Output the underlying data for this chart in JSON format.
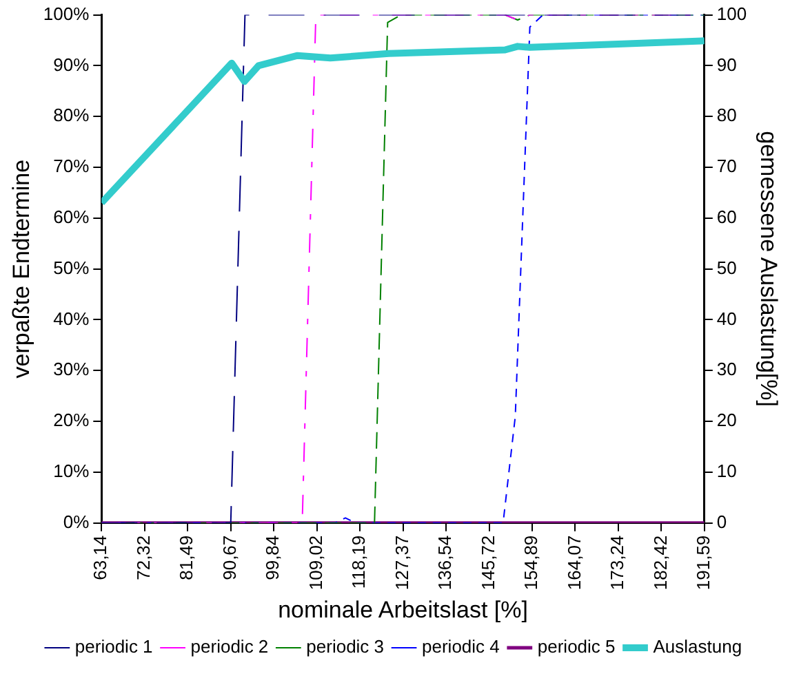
{
  "chart_data": {
    "type": "line",
    "xlabel": "nominale Arbeitslast [%]",
    "ylabel": "verpaßte Endtermine",
    "y2label": "gemessene Auslastung[%]",
    "xlim": [
      63.14,
      191.59
    ],
    "xticks": [
      {
        "value": 63.14,
        "label": "63,14"
      },
      {
        "value": 72.32,
        "label": "72,32"
      },
      {
        "value": 81.49,
        "label": "81,49"
      },
      {
        "value": 90.67,
        "label": "90,67"
      },
      {
        "value": 99.84,
        "label": "99,84"
      },
      {
        "value": 109.02,
        "label": "109,02"
      },
      {
        "value": 118.19,
        "label": "118,19"
      },
      {
        "value": 127.37,
        "label": "127,37"
      },
      {
        "value": 136.54,
        "label": "136,54"
      },
      {
        "value": 145.72,
        "label": "145,72"
      },
      {
        "value": 154.89,
        "label": "154,89"
      },
      {
        "value": 164.07,
        "label": "164,07"
      },
      {
        "value": 173.24,
        "label": "173,24"
      },
      {
        "value": 182.42,
        "label": "182,42"
      },
      {
        "value": 191.59,
        "label": "191,59"
      }
    ],
    "ylim": [
      0,
      100
    ],
    "yticks": [
      {
        "value": 0,
        "label": "0%"
      },
      {
        "value": 10,
        "label": "10%"
      },
      {
        "value": 20,
        "label": "20%"
      },
      {
        "value": 30,
        "label": "30%"
      },
      {
        "value": 40,
        "label": "40%"
      },
      {
        "value": 50,
        "label": "50%"
      },
      {
        "value": 60,
        "label": "60%"
      },
      {
        "value": 70,
        "label": "70%"
      },
      {
        "value": 80,
        "label": "80%"
      },
      {
        "value": 90,
        "label": "90%"
      },
      {
        "value": 100,
        "label": "100%"
      }
    ],
    "y2lim": [
      0,
      100
    ],
    "y2ticks": [
      0,
      10,
      20,
      30,
      40,
      50,
      60,
      70,
      80,
      90,
      100
    ],
    "grid": false,
    "legend": "bottom",
    "marker": "none",
    "series": [
      {
        "name": "periodic 1",
        "color": "#000080",
        "line_style": "dashed",
        "x": [
          63.14,
          90.67,
          93.7,
          191.59
        ],
        "values": [
          0,
          0,
          100,
          100
        ]
      },
      {
        "name": "periodic 2",
        "color": "#ff00ff",
        "line_style": "dashed",
        "x": [
          63.14,
          105.9,
          108.8,
          149.1,
          151.8,
          154.4,
          191.59
        ],
        "values": [
          0,
          0,
          100,
          100,
          99,
          100,
          100
        ]
      },
      {
        "name": "periodic 3",
        "color": "#008000",
        "line_style": "dashed",
        "x": [
          63.14,
          121.3,
          124.1,
          127.0,
          149.1,
          151.8,
          154.4,
          191.59
        ],
        "values": [
          0,
          0,
          98.5,
          100,
          100,
          99,
          100,
          100
        ]
      },
      {
        "name": "periodic 4",
        "color": "#0000ff",
        "line_style": "dashed",
        "x": [
          63.14,
          112.9,
          115.1,
          117.3,
          148.7,
          151.3,
          154.4,
          157.2,
          191.59
        ],
        "values": [
          0,
          0,
          1,
          0,
          0,
          21,
          97.6,
          100,
          100
        ]
      },
      {
        "name": "periodic 5",
        "color": "#800080",
        "line_style": "solid",
        "x": [
          63.14,
          191.59
        ],
        "values": [
          0,
          0
        ]
      },
      {
        "name": "Auslastung",
        "color": "#33cccc",
        "line_style": "solid",
        "axis": "y2",
        "x": [
          63.14,
          90.87,
          93.6,
          96.6,
          104.9,
          111.9,
          124.3,
          149.1,
          151.8,
          154.4,
          191.59
        ],
        "values": [
          63,
          90.5,
          86.9,
          90,
          92,
          91.5,
          92.4,
          93.1,
          93.8,
          93.6,
          94.9
        ]
      }
    ]
  }
}
